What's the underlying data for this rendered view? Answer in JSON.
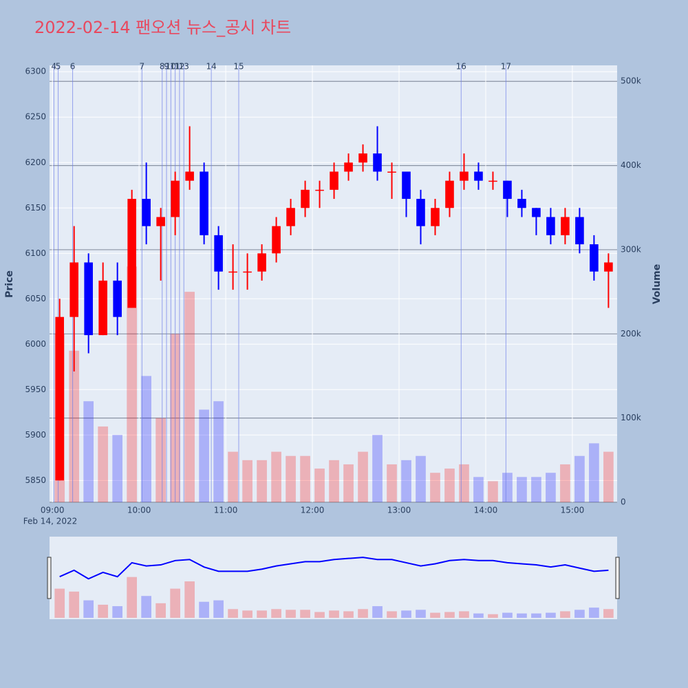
{
  "chart_data": {
    "type": "candlestick",
    "title": "2022-02-14 팬오션 뉴스_공시 차트",
    "x_subtitle": "Feb 14, 2022",
    "y_label": "Price",
    "y2_label": "Volume",
    "up_color": "#ff0000",
    "down_color": "#0000ff",
    "news_color": "#6f7fe8",
    "x": [
      "09:00",
      "09:10",
      "09:20",
      "09:30",
      "09:40",
      "09:50",
      "10:00",
      "10:10",
      "10:20",
      "10:30",
      "10:40",
      "10:50",
      "11:00",
      "11:10",
      "11:20",
      "11:30",
      "11:40",
      "11:50",
      "12:00",
      "12:10",
      "12:20",
      "12:30",
      "12:40",
      "12:50",
      "13:00",
      "13:10",
      "13:20",
      "13:30",
      "13:40",
      "13:50",
      "14:00",
      "14:10",
      "14:20",
      "14:30",
      "14:40",
      "14:50",
      "15:00",
      "15:10",
      "15:20"
    ],
    "open": [
      5850,
      6030,
      6090,
      6010,
      6070,
      6040,
      6160,
      6130,
      6140,
      6180,
      6190,
      6120,
      6080,
      6080,
      6080,
      6100,
      6130,
      6150,
      6170,
      6170,
      6190,
      6200,
      6210,
      6190,
      6190,
      6160,
      6130,
      6150,
      6180,
      6190,
      6180,
      6180,
      6160,
      6150,
      6140,
      6120,
      6140,
      6110,
      6080
    ],
    "high": [
      6050,
      6130,
      6100,
      6090,
      6090,
      6170,
      6200,
      6150,
      6190,
      6240,
      6200,
      6130,
      6110,
      6100,
      6110,
      6140,
      6160,
      6180,
      6180,
      6200,
      6210,
      6220,
      6240,
      6200,
      6190,
      6170,
      6160,
      6190,
      6210,
      6200,
      6190,
      6180,
      6170,
      6150,
      6150,
      6150,
      6150,
      6120,
      6100
    ],
    "low": [
      5850,
      5970,
      5990,
      6010,
      6010,
      6040,
      6110,
      6070,
      6120,
      6170,
      6110,
      6060,
      6060,
      6060,
      6070,
      6090,
      6120,
      6140,
      6150,
      6160,
      6180,
      6190,
      6180,
      6160,
      6140,
      6110,
      6120,
      6140,
      6170,
      6170,
      6170,
      6140,
      6140,
      6120,
      6110,
      6110,
      6100,
      6070,
      6040
    ],
    "close": [
      6030,
      6090,
      6010,
      6070,
      6030,
      6160,
      6130,
      6140,
      6180,
      6190,
      6120,
      6080,
      6080,
      6080,
      6100,
      6130,
      6150,
      6170,
      6170,
      6190,
      6200,
      6210,
      6190,
      6190,
      6160,
      6130,
      6150,
      6180,
      6190,
      6180,
      6180,
      6160,
      6150,
      6140,
      6120,
      6140,
      6110,
      6080,
      6090
    ],
    "volume": [
      200000,
      180000,
      120000,
      90000,
      80000,
      280000,
      150000,
      100000,
      200000,
      250000,
      110000,
      120000,
      60000,
      50000,
      50000,
      60000,
      55000,
      55000,
      40000,
      50000,
      45000,
      60000,
      80000,
      45000,
      50000,
      55000,
      35000,
      40000,
      45000,
      30000,
      25000,
      35000,
      30000,
      30000,
      35000,
      45000,
      55000,
      70000,
      60000
    ],
    "news": [
      {
        "label": "4",
        "time": "09:01"
      },
      {
        "label": "5",
        "time": "09:04"
      },
      {
        "label": "6",
        "time": "09:14"
      },
      {
        "label": "7",
        "time": "10:02"
      },
      {
        "label": "8",
        "time": "10:16"
      },
      {
        "label": "9",
        "time": "10:19"
      },
      {
        "label": "10",
        "time": "10:22"
      },
      {
        "label": "11",
        "time": "10:25"
      },
      {
        "label": "12",
        "time": "10:28"
      },
      {
        "label": "13",
        "time": "10:31"
      },
      {
        "label": "14",
        "time": "10:50"
      },
      {
        "label": "15",
        "time": "11:09"
      },
      {
        "label": "16",
        "time": "13:43"
      },
      {
        "label": "17",
        "time": "14:14"
      }
    ],
    "xlim": [
      "08:58",
      "15:31"
    ],
    "xticks": [
      "09:00",
      "10:00",
      "11:00",
      "12:00",
      "13:00",
      "14:00",
      "15:00"
    ],
    "ylim": [
      5826,
      6307
    ],
    "yticks": [
      5850,
      5900,
      5950,
      6000,
      6050,
      6100,
      6150,
      6200,
      6250,
      6300
    ],
    "y2lim": [
      0,
      519000
    ],
    "y2ticks": [
      0,
      {
        "value": 100000,
        "label": "100k"
      },
      {
        "value": 200000,
        "label": "200k"
      },
      {
        "value": 300000,
        "label": "300k"
      },
      {
        "value": 400000,
        "label": "400k"
      },
      {
        "value": 500000,
        "label": "500k"
      }
    ],
    "grid": true
  }
}
